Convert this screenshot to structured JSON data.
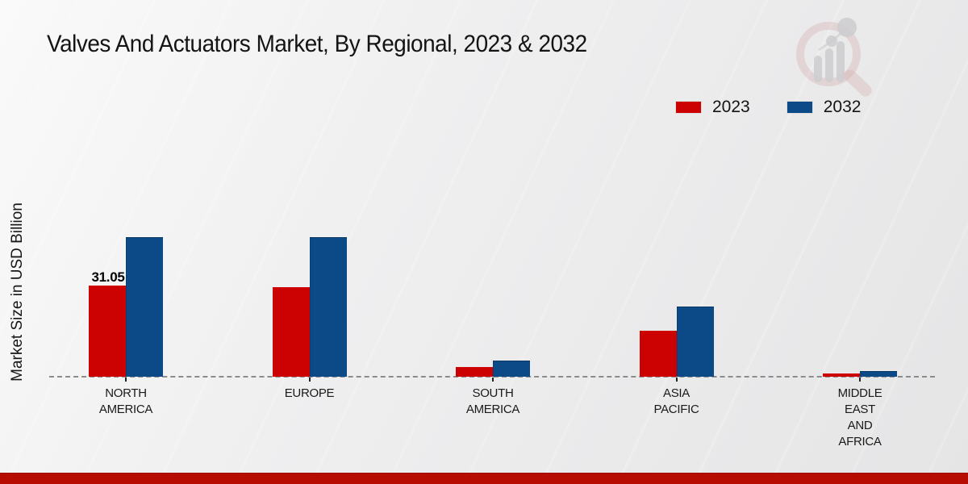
{
  "title": "Valves And Actuators Market, By Regional, 2023 & 2032",
  "watermark_icon": "magnifier-bar-chart-logo",
  "colors": {
    "background_top": "#fafafa",
    "background_bottom": "#e5e5e6",
    "series_2023": "#cb0201",
    "series_2032": "#0b4a86",
    "footer_bar": "#b70c01",
    "baseline_dash": "#8c8c8c",
    "text": "#141414"
  },
  "chart_data": {
    "type": "bar",
    "title": "Valves And Actuators Market, By Regional, 2023 & 2032",
    "xlabel": "",
    "ylabel": "Market Size in USD Billion",
    "categories": [
      "NORTH AMERICA",
      "EUROPE",
      "SOUTH AMERICA",
      "ASIA PACIFIC",
      "MIDDLE EAST AND AFRICA"
    ],
    "series": [
      {
        "name": "2023",
        "color": "#cb0201",
        "values": [
          31.05,
          30.6,
          3.4,
          15.7,
          1.2
        ]
      },
      {
        "name": "2032",
        "color": "#0b4a86",
        "values": [
          47.5,
          47.4,
          5.6,
          24.0,
          1.8
        ]
      }
    ],
    "annotations": [
      {
        "text": "31.05",
        "category_index": 0,
        "series_index": 0
      }
    ],
    "ylim": [
      0,
      50
    ],
    "y_axis_ticks_visible": false,
    "grid": false,
    "legend_position": "top-right",
    "baseline_style": "dashed",
    "x_tick_marks": true
  }
}
